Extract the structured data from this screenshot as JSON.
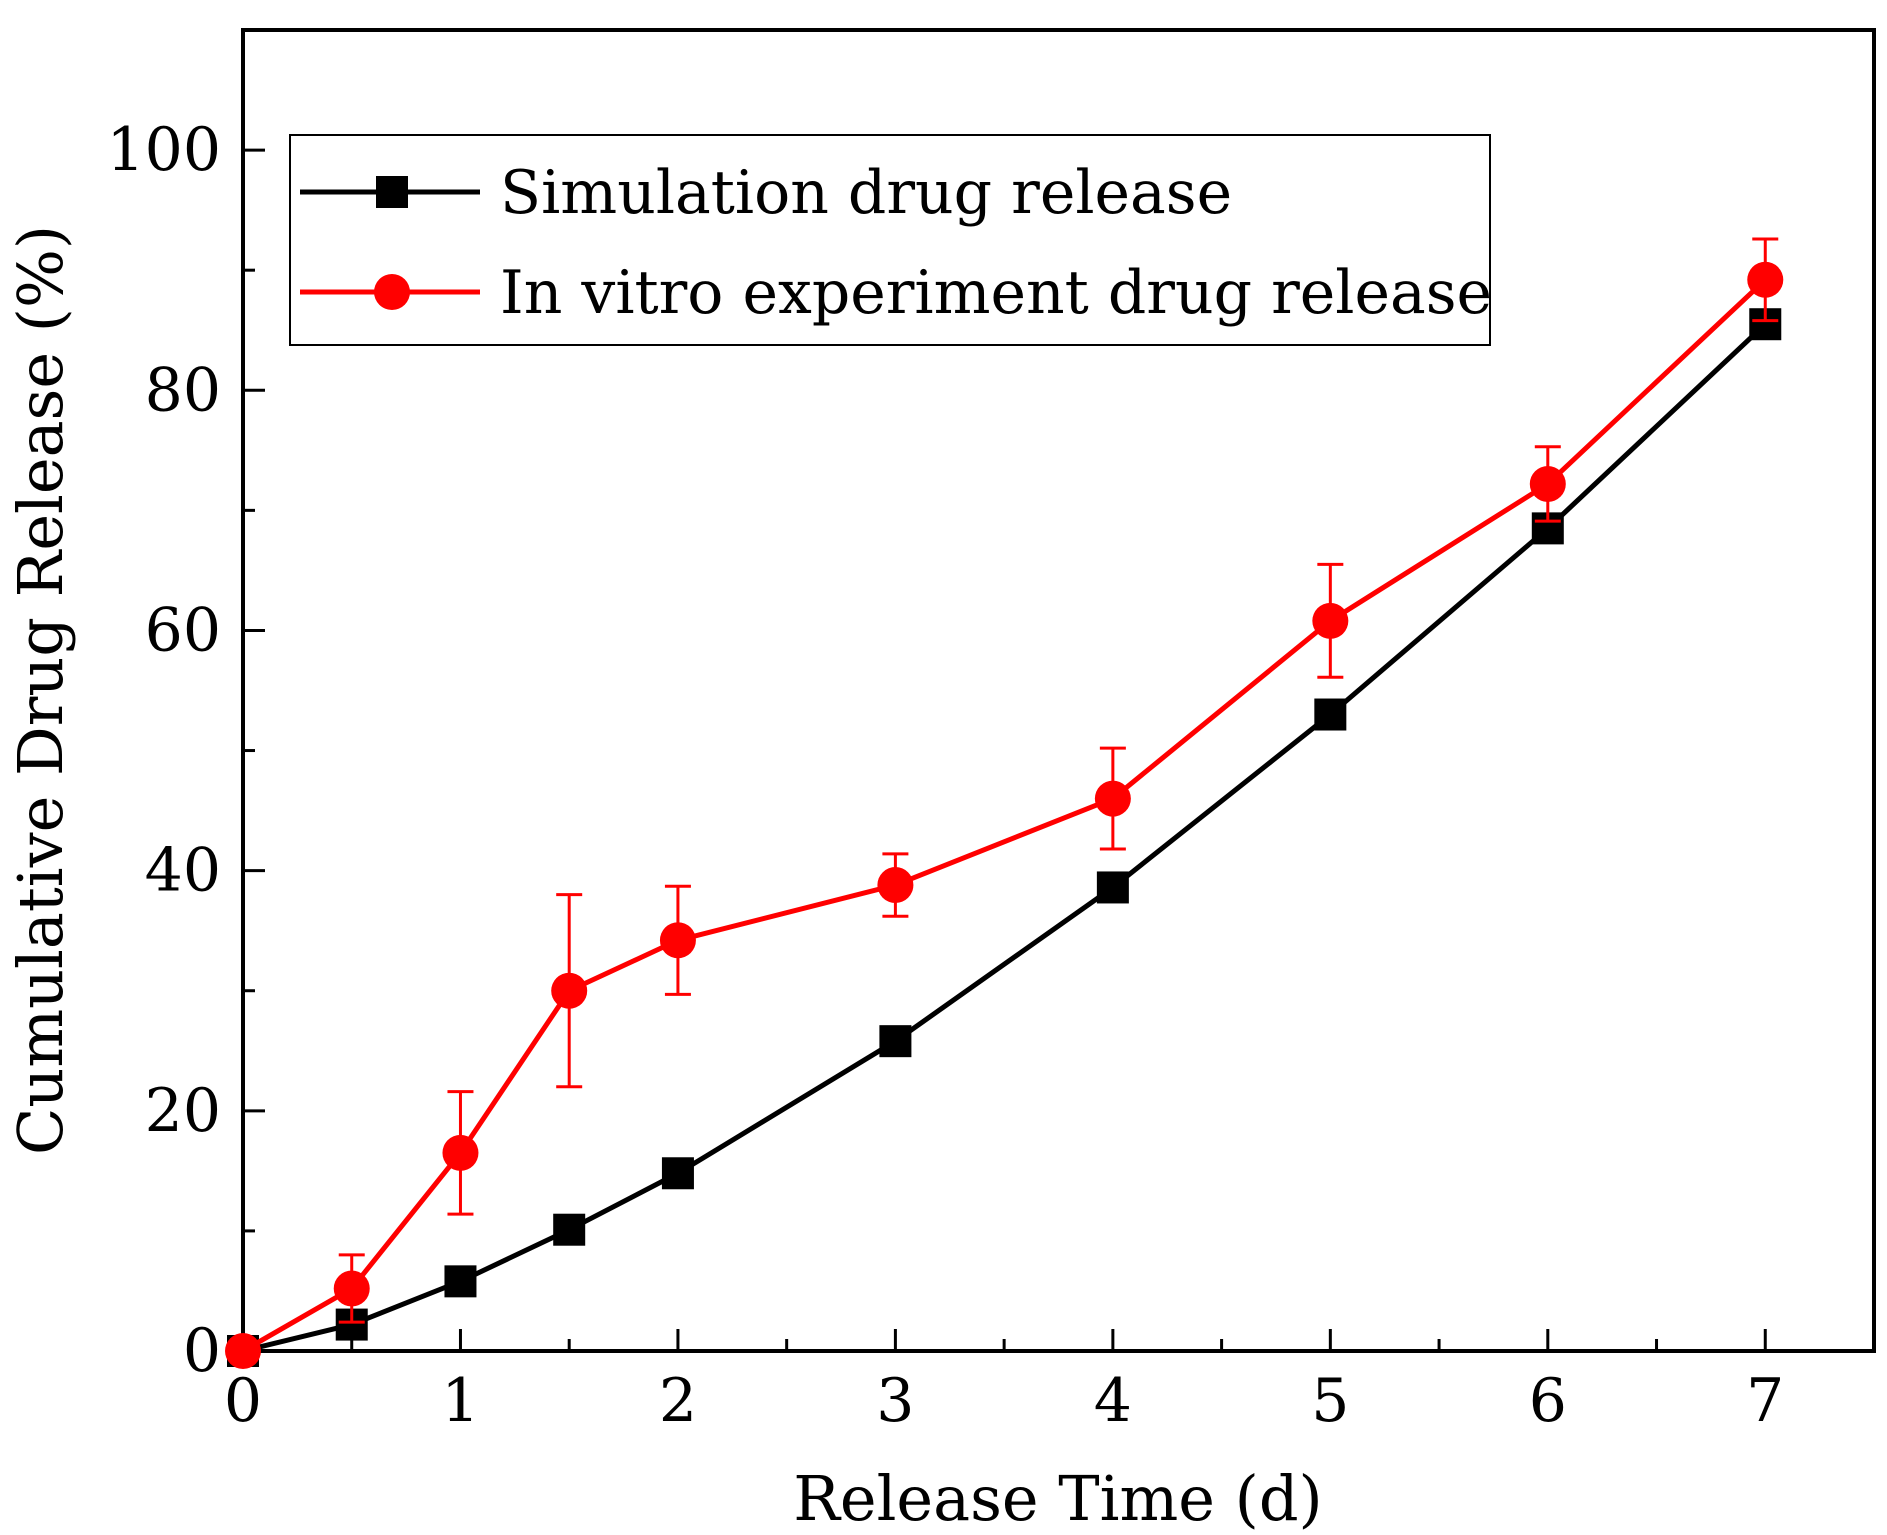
{
  "chart_data": {
    "type": "line",
    "title": "",
    "xlabel": "Release Time (d)",
    "ylabel": "Cumulative Drug Release (%)",
    "xlim": [
      0,
      7.5
    ],
    "ylim": [
      0,
      110
    ],
    "x_ticks": [
      0,
      1,
      2,
      3,
      4,
      5,
      6,
      7
    ],
    "x_tick_labels": [
      "0",
      "1",
      "2",
      "3",
      "4",
      "5",
      "6",
      "7"
    ],
    "x_minor_ticks": [
      0.5,
      1.5,
      2.5,
      3.5,
      4.5,
      5.5,
      6.5,
      7.5
    ],
    "y_ticks": [
      0,
      20,
      40,
      60,
      80,
      100
    ],
    "y_tick_labels": [
      "0",
      "20",
      "40",
      "60",
      "80",
      "100"
    ],
    "y_minor_ticks": [
      10,
      30,
      50,
      70,
      90,
      110
    ],
    "grid": false,
    "legend_position": "top-left",
    "series": [
      {
        "name": "Simulation drug release",
        "color": "#000000",
        "marker": "square",
        "x": [
          0,
          0.5,
          1,
          1.5,
          2,
          3,
          4,
          5,
          6,
          7
        ],
        "values": [
          0,
          2.2,
          5.8,
          10.1,
          14.8,
          25.8,
          38.6,
          53.0,
          68.5,
          85.5
        ]
      },
      {
        "name": "In vitro experiment drug release",
        "color": "#ff0000",
        "marker": "circle",
        "x": [
          0,
          0.5,
          1,
          1.5,
          2,
          3,
          4,
          5,
          6,
          7
        ],
        "values": [
          0,
          5.2,
          16.5,
          30.0,
          34.2,
          38.8,
          46.0,
          60.8,
          72.2,
          89.2
        ],
        "error": [
          0,
          2.8,
          5.1,
          8.0,
          4.5,
          2.6,
          4.2,
          4.7,
          3.1,
          3.4
        ]
      }
    ]
  }
}
